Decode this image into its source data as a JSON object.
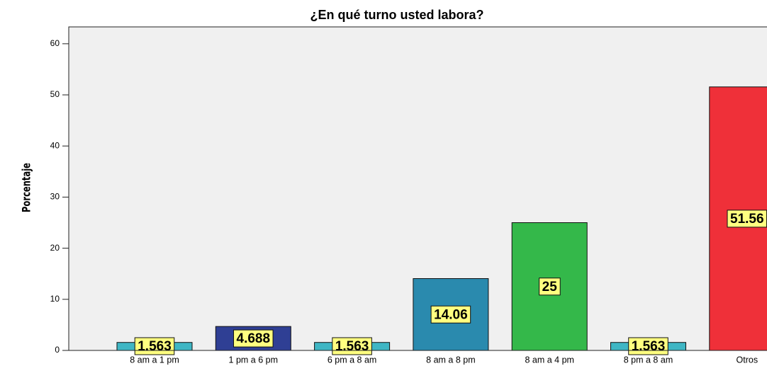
{
  "chart_data": {
    "type": "bar",
    "title": "¿En qué turno usted labora?",
    "y_label": "Porcentaje",
    "categories": [
      "8 am a 1 pm",
      "1 pm a 6 pm",
      "6 pm a 8 am",
      "8 am a 8 pm",
      "8 am a 4 pm",
      "8 pm a 8 am",
      "Otros"
    ],
    "values": [
      1.563,
      4.688,
      1.563,
      14.06,
      25,
      1.563,
      51.56
    ],
    "colors": [
      "#3fb6c4",
      "#2f3f94",
      "#3fb6c4",
      "#2a8aae",
      "#34b84a",
      "#3fb6c4",
      "#ef3039"
    ],
    "ylim": [
      0,
      63.3
    ],
    "yticks": [
      0,
      10,
      20,
      30,
      40,
      50,
      60
    ],
    "grid": false
  }
}
